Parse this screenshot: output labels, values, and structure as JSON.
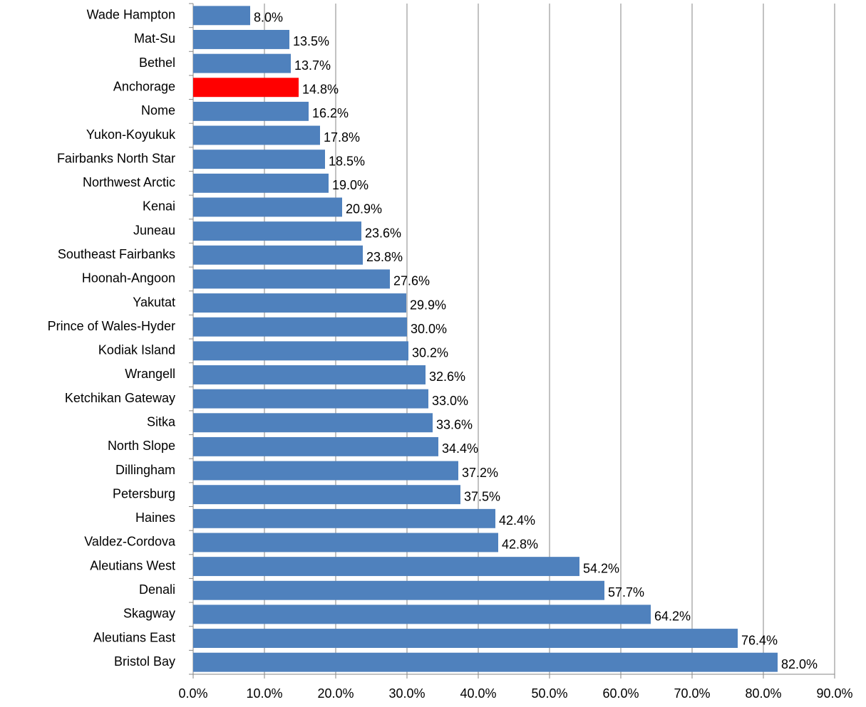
{
  "chart_data": {
    "type": "barh",
    "categories": [
      "Wade Hampton",
      "Mat-Su",
      "Bethel",
      "Anchorage",
      "Nome",
      "Yukon-Koyukuk",
      "Fairbanks North Star",
      "Northwest Arctic",
      "Kenai",
      "Juneau",
      "Southeast Fairbanks",
      "Hoonah-Angoon",
      "Yakutat",
      "Prince of Wales-Hyder",
      "Kodiak Island",
      "Wrangell",
      "Ketchikan Gateway",
      "Sitka",
      "North Slope",
      "Dillingham",
      "Petersburg",
      "Haines",
      "Valdez-Cordova",
      "Aleutians West",
      "Denali",
      "Skagway",
      "Aleutians East",
      "Bristol Bay"
    ],
    "values": [
      8.0,
      13.5,
      13.7,
      14.8,
      16.2,
      17.8,
      18.5,
      19.0,
      20.9,
      23.6,
      23.8,
      27.6,
      29.9,
      30.0,
      30.2,
      32.6,
      33.0,
      33.6,
      34.4,
      37.2,
      37.5,
      42.4,
      42.8,
      54.2,
      57.7,
      64.2,
      76.4,
      82.0
    ],
    "value_labels": [
      "8.0%",
      "13.5%",
      "13.7%",
      "14.8%",
      "16.2%",
      "17.8%",
      "18.5%",
      "19.0%",
      "20.9%",
      "23.6%",
      "23.8%",
      "27.6%",
      "29.9%",
      "30.0%",
      "30.2%",
      "32.6%",
      "33.0%",
      "33.6%",
      "34.4%",
      "37.2%",
      "37.5%",
      "42.4%",
      "42.8%",
      "54.2%",
      "57.7%",
      "64.2%",
      "76.4%",
      "82.0%"
    ],
    "colors": [
      "#4f81bd",
      "#4f81bd",
      "#4f81bd",
      "#ff0000",
      "#4f81bd",
      "#4f81bd",
      "#4f81bd",
      "#4f81bd",
      "#4f81bd",
      "#4f81bd",
      "#4f81bd",
      "#4f81bd",
      "#4f81bd",
      "#4f81bd",
      "#4f81bd",
      "#4f81bd",
      "#4f81bd",
      "#4f81bd",
      "#4f81bd",
      "#4f81bd",
      "#4f81bd",
      "#4f81bd",
      "#4f81bd",
      "#4f81bd",
      "#4f81bd",
      "#4f81bd",
      "#4f81bd",
      "#4f81bd"
    ],
    "xlim": [
      0,
      90
    ],
    "xticks": [
      {
        "value": 0,
        "label": "0.0%"
      },
      {
        "value": 10,
        "label": "10.0%"
      },
      {
        "value": 20,
        "label": "20.0%"
      },
      {
        "value": 30,
        "label": "30.0%"
      },
      {
        "value": 40,
        "label": "40.0%"
      },
      {
        "value": 50,
        "label": "50.0%"
      },
      {
        "value": 60,
        "label": "60.0%"
      },
      {
        "value": 70,
        "label": "70.0%"
      },
      {
        "value": 80,
        "label": "80.0%"
      },
      {
        "value": 90,
        "label": "90.0%"
      }
    ],
    "grid": true
  }
}
